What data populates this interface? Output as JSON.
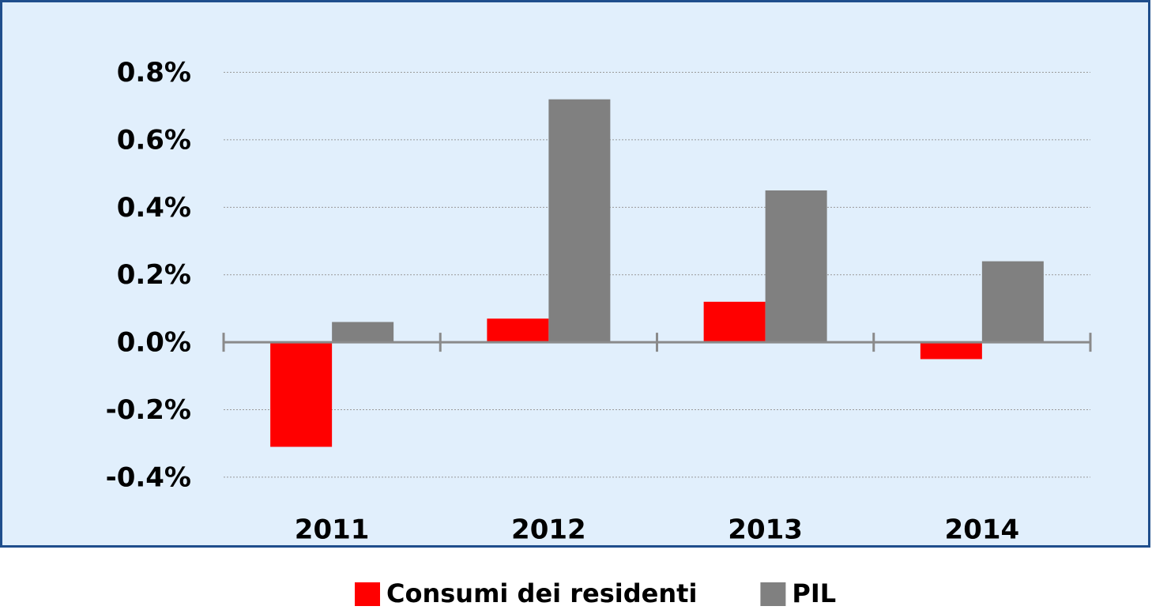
{
  "chart_data": {
    "type": "bar",
    "categories": [
      "2011",
      "2012",
      "2013",
      "2014"
    ],
    "series": [
      {
        "name": "Consumi dei residenti",
        "color": "#ff0000",
        "values": [
          -0.31,
          0.07,
          0.12,
          -0.05
        ]
      },
      {
        "name": "PIL",
        "color": "#808080",
        "values": [
          0.06,
          0.72,
          0.45,
          0.24
        ]
      }
    ],
    "ylim": [
      -0.44,
      0.82
    ],
    "yticks": [
      {
        "value": -0.4,
        "label": "-0.4%"
      },
      {
        "value": -0.2,
        "label": "-0.2%"
      },
      {
        "value": 0.0,
        "label": "0.0%"
      },
      {
        "value": 0.2,
        "label": "0.2%"
      },
      {
        "value": 0.4,
        "label": "0.4%"
      },
      {
        "value": 0.6,
        "label": "0.6%"
      },
      {
        "value": 0.8,
        "label": "0.8%"
      }
    ],
    "grid": true,
    "legend": "bottom"
  }
}
